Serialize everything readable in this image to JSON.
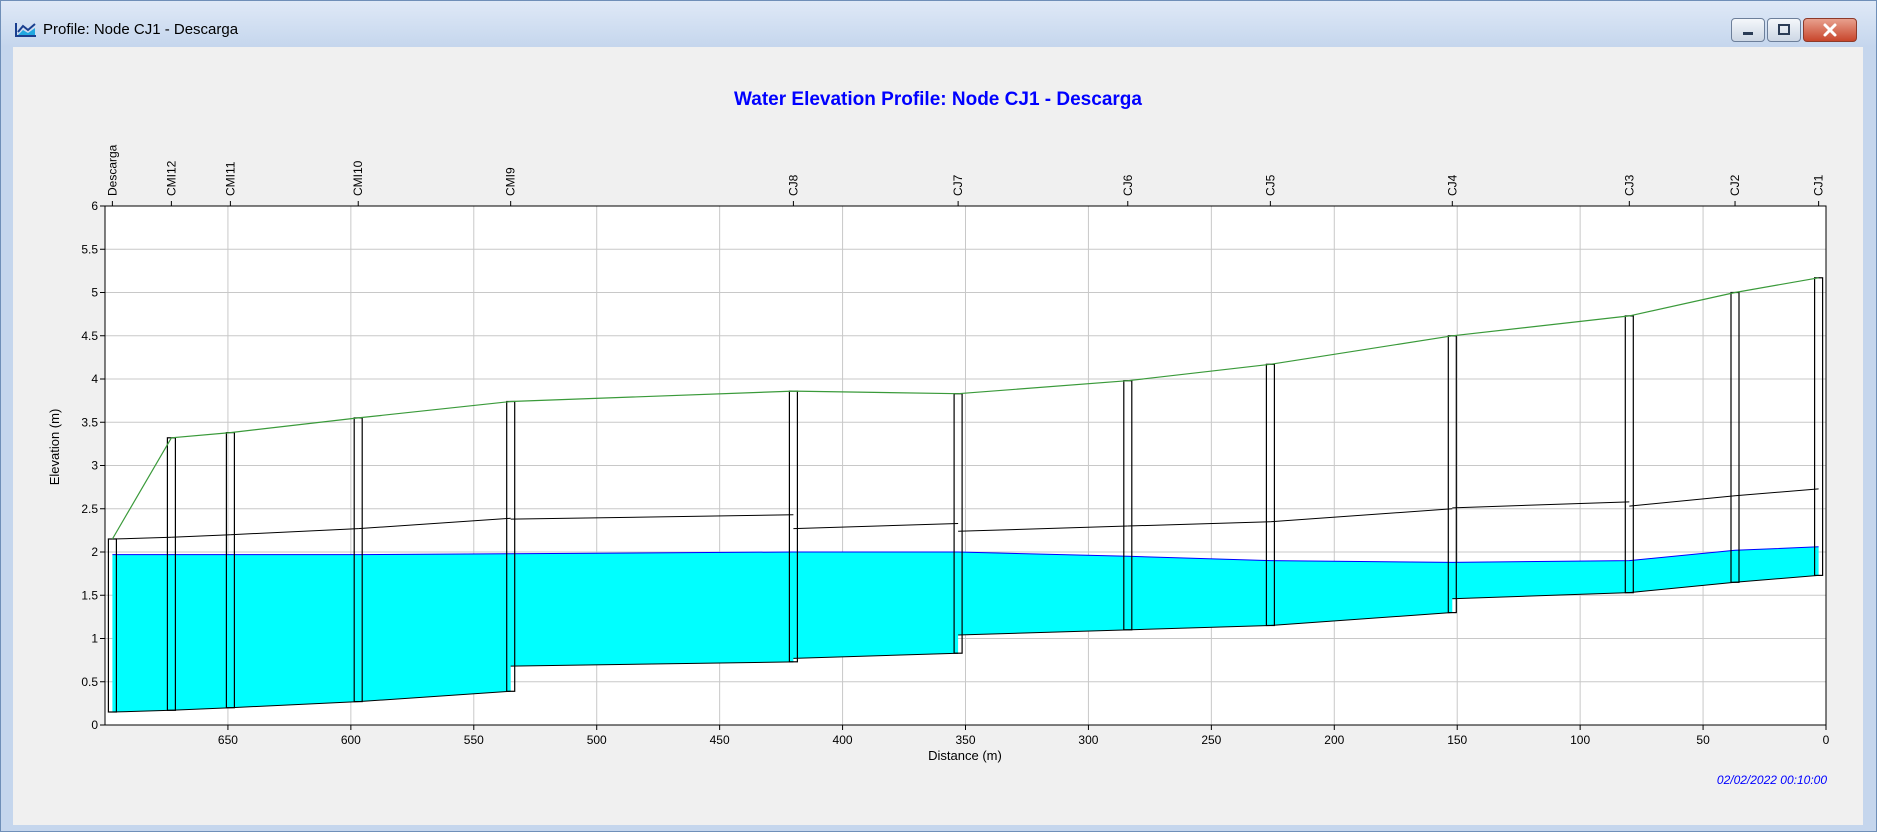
{
  "window": {
    "title": "Profile: Node CJ1 - Descarga",
    "icons": {
      "app": "profile-icon",
      "minimize": "minimize-icon",
      "maximize": "maximize-icon",
      "close": "close-icon"
    }
  },
  "timestamp": "02/02/2022 00:10:00",
  "chart_data": {
    "type": "area",
    "title": "Water Elevation Profile: Node CJ1 - Descarga",
    "xlabel": "Distance (m)",
    "ylabel": "Elevation (m)",
    "xlim": [
      700,
      0
    ],
    "ylim": [
      0,
      6
    ],
    "x_reversed": true,
    "grid": true,
    "x_ticks": [
      650,
      600,
      550,
      500,
      450,
      400,
      350,
      300,
      250,
      200,
      150,
      100,
      50,
      0
    ],
    "y_ticks": [
      0,
      0.5,
      1,
      1.5,
      2,
      2.5,
      3,
      3.5,
      4,
      4.5,
      5,
      5.5,
      6
    ],
    "y_tick_labels": [
      "0",
      "0.5",
      "1",
      "1.5",
      "2",
      "2.5",
      "3",
      "3.5",
      "4",
      "4.5",
      "5",
      "5.5",
      "6"
    ],
    "colors": {
      "water": "#00ffff",
      "water_line": "#0000ff",
      "ground": "#3a9a3a",
      "conduit": "#000000",
      "grid": "#c8c8c8",
      "title": "#0000ff",
      "timestamp": "#0000ff"
    },
    "nodes": [
      {
        "name": "Descarga",
        "distance": 697,
        "invert": 0.15,
        "ground": 2.15,
        "water": 1.97
      },
      {
        "name": "CMI12",
        "distance": 673,
        "invert": 0.17,
        "ground": 3.32,
        "water": 1.97
      },
      {
        "name": "CMI11",
        "distance": 649,
        "invert": 0.2,
        "ground": 3.38,
        "water": 1.97
      },
      {
        "name": "CMI10",
        "distance": 597,
        "invert": 0.27,
        "ground": 3.55,
        "water": 1.97
      },
      {
        "name": "CMI9",
        "distance": 535,
        "invert": 0.39,
        "ground": 3.74,
        "water": 1.98
      },
      {
        "name": "CJ8",
        "distance": 420,
        "invert": 0.73,
        "ground": 3.86,
        "water": 2.0
      },
      {
        "name": "CJ7",
        "distance": 353,
        "invert": 0.83,
        "ground": 3.83,
        "water": 2.0
      },
      {
        "name": "CJ6",
        "distance": 284,
        "invert": 1.1,
        "ground": 3.98,
        "water": 1.95
      },
      {
        "name": "CJ5",
        "distance": 226,
        "invert": 1.15,
        "ground": 4.17,
        "water": 1.9
      },
      {
        "name": "CJ4",
        "distance": 152,
        "invert": 1.3,
        "ground": 4.5,
        "water": 1.88
      },
      {
        "name": "CJ3",
        "distance": 80,
        "invert": 1.53,
        "ground": 4.73,
        "water": 1.9
      },
      {
        "name": "CJ2",
        "distance": 37,
        "invert": 1.65,
        "ground": 5.0,
        "water": 2.02
      },
      {
        "name": "CJ1",
        "distance": 3,
        "invert": 1.73,
        "ground": 5.17,
        "water": 2.06
      }
    ],
    "conduits": [
      {
        "from": "Descarga",
        "to": "CMI12",
        "up_invert": 0.15,
        "down_invert": 0.17,
        "height": 2.0
      },
      {
        "from": "CMI12",
        "to": "CMI11",
        "up_invert": 0.17,
        "down_invert": 0.2,
        "height": 2.0
      },
      {
        "from": "CMI11",
        "to": "CMI10",
        "up_invert": 0.2,
        "down_invert": 0.27,
        "height": 2.0
      },
      {
        "from": "CMI10",
        "to": "CMI9",
        "up_invert": 0.27,
        "down_invert": 0.39,
        "height": 2.0
      },
      {
        "from": "CMI9",
        "to": "CJ8",
        "up_invert": 0.68,
        "down_invert": 0.73,
        "height": 1.7
      },
      {
        "from": "CJ8",
        "to": "CJ7",
        "up_invert": 0.77,
        "down_invert": 0.83,
        "height": 1.5
      },
      {
        "from": "CJ7",
        "to": "CJ6",
        "up_invert": 1.04,
        "down_invert": 1.1,
        "height": 1.2
      },
      {
        "from": "CJ6",
        "to": "CJ5",
        "up_invert": 1.1,
        "down_invert": 1.15,
        "height": 1.2
      },
      {
        "from": "CJ5",
        "to": "CJ4",
        "up_invert": 1.15,
        "down_invert": 1.3,
        "height": 1.2
      },
      {
        "from": "CJ4",
        "to": "CJ3",
        "up_invert": 1.46,
        "down_invert": 1.53,
        "height": 1.05
      },
      {
        "from": "CJ3",
        "to": "CJ2",
        "up_invert": 1.53,
        "down_invert": 1.65,
        "height": 1.0
      },
      {
        "from": "CJ2",
        "to": "CJ1",
        "up_invert": 1.65,
        "down_invert": 1.73,
        "height": 1.0
      }
    ]
  }
}
